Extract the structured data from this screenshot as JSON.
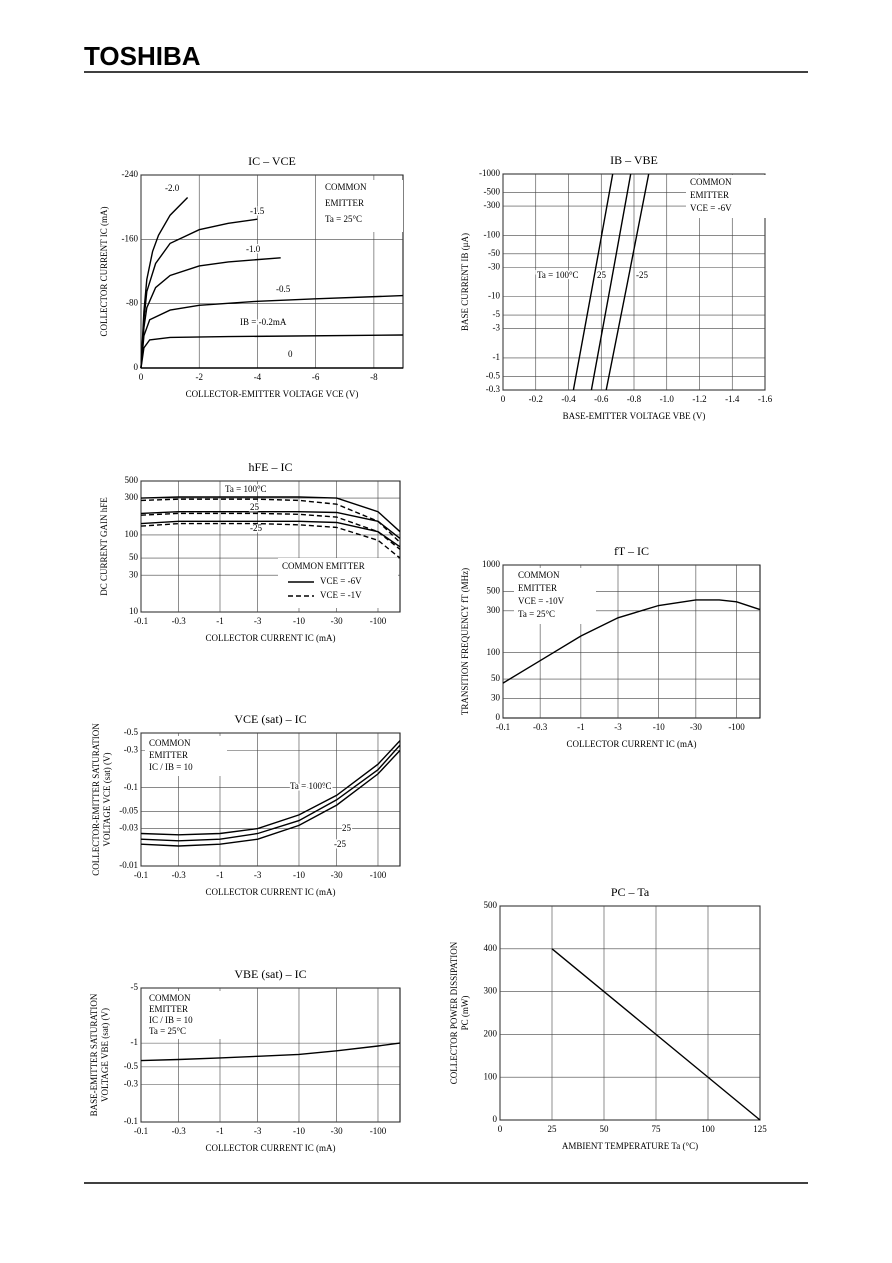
{
  "header": "TOSHIBA",
  "chart_data": [
    {
      "type": "line",
      "title": "IC – VCE",
      "xlabel": "COLLECTOR-EMITTER VOLTAGE  VCE  (V)",
      "ylabel": [
        "COLLECTOR CURRENT  IC  (mA)"
      ],
      "xlim": [
        0,
        -9
      ],
      "xticks": [
        0,
        -2,
        -4,
        -6,
        -8
      ],
      "ylim": [
        0,
        -240
      ],
      "yticks": [
        0,
        -80,
        -160,
        -240
      ],
      "grid": true,
      "notes": [
        "COMMON",
        "EMITTER",
        "Ta = 25°C"
      ],
      "series": [
        {
          "name": "-2.0",
          "x": [
            0,
            -0.1,
            -0.2,
            -0.4,
            -0.6,
            -1.0,
            -1.6
          ],
          "values": [
            0,
            -70,
            -110,
            -145,
            -165,
            -190,
            -212
          ]
        },
        {
          "name": "-1.5",
          "x": [
            0,
            -0.1,
            -0.2,
            -0.5,
            -1,
            -2,
            -3,
            -4
          ],
          "values": [
            0,
            -60,
            -95,
            -130,
            -155,
            -172,
            -180,
            -185
          ]
        },
        {
          "name": "-1.0",
          "x": [
            0,
            -0.1,
            -0.2,
            -0.5,
            -1,
            -2,
            -3,
            -4.8
          ],
          "values": [
            0,
            -50,
            -75,
            -100,
            -115,
            -127,
            -132,
            -137
          ]
        },
        {
          "name": "-0.5",
          "x": [
            0,
            -0.1,
            -0.3,
            -1,
            -2,
            -4,
            -6,
            -9
          ],
          "values": [
            0,
            -40,
            -60,
            -72,
            -78,
            -83,
            -86,
            -90
          ]
        },
        {
          "name": "IB = -0.2mA",
          "x": [
            0,
            -0.1,
            -0.3,
            -1,
            -3,
            -9
          ],
          "values": [
            0,
            -25,
            -35,
            -38,
            -39,
            -41
          ]
        },
        {
          "name": "0",
          "x": [
            0,
            -9
          ],
          "values": [
            0,
            0
          ]
        }
      ]
    },
    {
      "type": "line",
      "title": "IB – VBE",
      "xlabel": "BASE-EMITTER VOLTAGE  VBE  (V)",
      "ylabel": [
        "BASE CURRENT  IB  (μA)"
      ],
      "xlim": [
        0,
        -1.6
      ],
      "xticks": [
        0,
        -0.2,
        -0.4,
        -0.6,
        -0.8,
        {
          "value": -1,
          "label": "-1.0"
        },
        -1.2,
        -1.4,
        -1.6
      ],
      "ylim": [
        -0.3,
        -1000
      ],
      "yticks": [
        -1000,
        -500,
        -300,
        -100,
        -50,
        -30,
        -10,
        -5,
        -3,
        -1,
        -0.5,
        -0.3
      ],
      "log_y": true,
      "grid": true,
      "notes": [
        "COMMON",
        "EMITTER",
        "VCE = -6V"
      ],
      "series": [
        {
          "name": "Ta = 100°C",
          "x": [
            -0.43,
            -0.55,
            -0.67
          ],
          "values": [
            -0.3,
            -17,
            -1000
          ]
        },
        {
          "name": "25",
          "x": [
            -0.54,
            -0.66,
            -0.78
          ],
          "values": [
            -0.3,
            -17,
            -1000
          ]
        },
        {
          "name": "-25",
          "x": [
            -0.63,
            -0.76,
            -0.89
          ],
          "values": [
            -0.3,
            -17,
            -1000
          ]
        }
      ]
    },
    {
      "type": "line",
      "title": "hFE – IC",
      "xlabel": "COLLECTOR CURRENT  IC  (mA)",
      "ylabel": [
        "DC CURRENT GAIN  hFE"
      ],
      "xlim": [
        -0.1,
        -190
      ],
      "xticks": [
        -0.1,
        -0.3,
        -1,
        -3,
        -10,
        -30,
        -100
      ],
      "log_x": true,
      "ylim": [
        10,
        500
      ],
      "yticks": [
        10,
        30,
        50,
        100,
        300,
        500
      ],
      "log_y": true,
      "grid": true,
      "legend_title": "COMMON EMITTER",
      "legend": [
        {
          "name": "VCE = -6V",
          "dash": "solid"
        },
        {
          "name": "VCE = -1V",
          "dash": "dashed"
        }
      ],
      "x": [
        -0.1,
        -0.3,
        -1,
        -3,
        -10,
        -30,
        -100,
        -190
      ],
      "series": [
        {
          "name": "Ta = 100°C",
          "dash": "solid",
          "values": [
            300,
            310,
            310,
            310,
            310,
            300,
            200,
            110
          ]
        },
        {
          "name": "25",
          "dash": "solid",
          "values": [
            190,
            200,
            200,
            200,
            200,
            195,
            150,
            90
          ]
        },
        {
          "name": "-25",
          "dash": "solid",
          "values": [
            140,
            150,
            150,
            150,
            150,
            145,
            110,
            70
          ]
        },
        {
          "dash": "dashed",
          "values": [
            280,
            290,
            290,
            290,
            280,
            250,
            150,
            80
          ]
        },
        {
          "dash": "dashed",
          "values": [
            180,
            190,
            190,
            190,
            185,
            170,
            110,
            65
          ]
        },
        {
          "dash": "dashed",
          "values": [
            130,
            140,
            140,
            140,
            135,
            125,
            85,
            50
          ]
        }
      ]
    },
    {
      "type": "line",
      "title": "fT – IC",
      "xlabel": "COLLECTOR CURRENT  IC  (mA)",
      "ylabel": [
        "TRANSITION FREQUENCY  fT  (MHz)"
      ],
      "xlim": [
        -0.1,
        -200
      ],
      "xticks": [
        -0.1,
        -0.3,
        -1,
        -3,
        -10,
        -30,
        -100
      ],
      "log_x": true,
      "ylim": [
        18,
        1000
      ],
      "yticks": [
        30,
        50,
        100,
        300,
        500,
        1000
      ],
      "log_y": true,
      "grid": true,
      "y_origin_label": "0",
      "notes": [
        "COMMON",
        "EMITTER",
        "VCE = -10V",
        "Ta = 25°C"
      ],
      "x": [
        -0.1,
        -0.3,
        -1,
        -3,
        -10,
        -30,
        -60,
        -100,
        -200
      ],
      "series": [
        {
          "values": [
            45,
            81,
            155,
            250,
            345,
            400,
            400,
            380,
            310
          ]
        }
      ]
    },
    {
      "type": "line",
      "title": "VCE (sat) – IC",
      "xlabel": "COLLECTOR CURRENT  IC  (mA)",
      "ylabel": [
        "COLLECTOR-EMITTER SATURATION",
        "VOLTAGE  VCE (sat)  (V)"
      ],
      "xlim": [
        -0.1,
        -190
      ],
      "xticks": [
        -0.1,
        -0.3,
        -1,
        -3,
        -10,
        -30,
        -100
      ],
      "log_x": true,
      "ylim": [
        -0.01,
        -0.5
      ],
      "yticks": [
        -0.5,
        -0.3,
        -0.1,
        -0.05,
        -0.03,
        -0.01
      ],
      "log_y": true,
      "grid": true,
      "notes": [
        "COMMON",
        "EMITTER",
        "IC / IB = 10"
      ],
      "x": [
        -0.1,
        -0.3,
        -1,
        -3,
        -10,
        -30,
        -100,
        -190
      ],
      "series": [
        {
          "name": "Ta = 100°C",
          "values": [
            -0.026,
            -0.025,
            -0.026,
            -0.03,
            -0.045,
            -0.08,
            -0.2,
            -0.4
          ]
        },
        {
          "name": "25",
          "values": [
            -0.022,
            -0.021,
            -0.022,
            -0.026,
            -0.038,
            -0.07,
            -0.17,
            -0.35
          ]
        },
        {
          "name": "-25",
          "values": [
            -0.019,
            -0.018,
            -0.019,
            -0.022,
            -0.033,
            -0.06,
            -0.15,
            -0.3
          ]
        }
      ]
    },
    {
      "type": "line",
      "title": "VBE (sat) – IC",
      "xlabel": "COLLECTOR CURRENT  IC  (mA)",
      "ylabel": [
        "BASE-EMITTER SATURATION",
        "VOLTAGE  VBE (sat)  (V)"
      ],
      "xlim": [
        -0.1,
        -190
      ],
      "xticks": [
        -0.1,
        -0.3,
        -1,
        -3,
        -10,
        -30,
        -100
      ],
      "log_x": true,
      "ylim": [
        -0.1,
        -5
      ],
      "yticks": [
        -5,
        -1,
        -0.5,
        -0.3,
        -0.1
      ],
      "log_y": true,
      "grid": true,
      "notes": [
        "COMMON",
        "EMITTER",
        "IC / IB = 10",
        "Ta = 25°C"
      ],
      "x": [
        -0.1,
        -0.3,
        -1,
        -3,
        -10,
        -30,
        -100,
        -190
      ],
      "series": [
        {
          "values": [
            -0.6,
            -0.62,
            -0.65,
            -0.68,
            -0.72,
            -0.8,
            -0.92,
            -1.0
          ]
        }
      ]
    },
    {
      "type": "line",
      "title": "PC – Ta",
      "xlabel": "AMBIENT TEMPERATURE  Ta  (°C)",
      "ylabel": [
        "COLLECTOR POWER DISSIPATION",
        "PC  (mW)"
      ],
      "xlim": [
        0,
        125
      ],
      "xticks": [
        0,
        25,
        50,
        75,
        100,
        125
      ],
      "ylim": [
        0,
        500
      ],
      "yticks": [
        0,
        100,
        200,
        300,
        400,
        500
      ],
      "grid": true,
      "x": [
        25,
        125
      ],
      "series": [
        {
          "values": [
            400,
            0
          ]
        }
      ]
    }
  ]
}
